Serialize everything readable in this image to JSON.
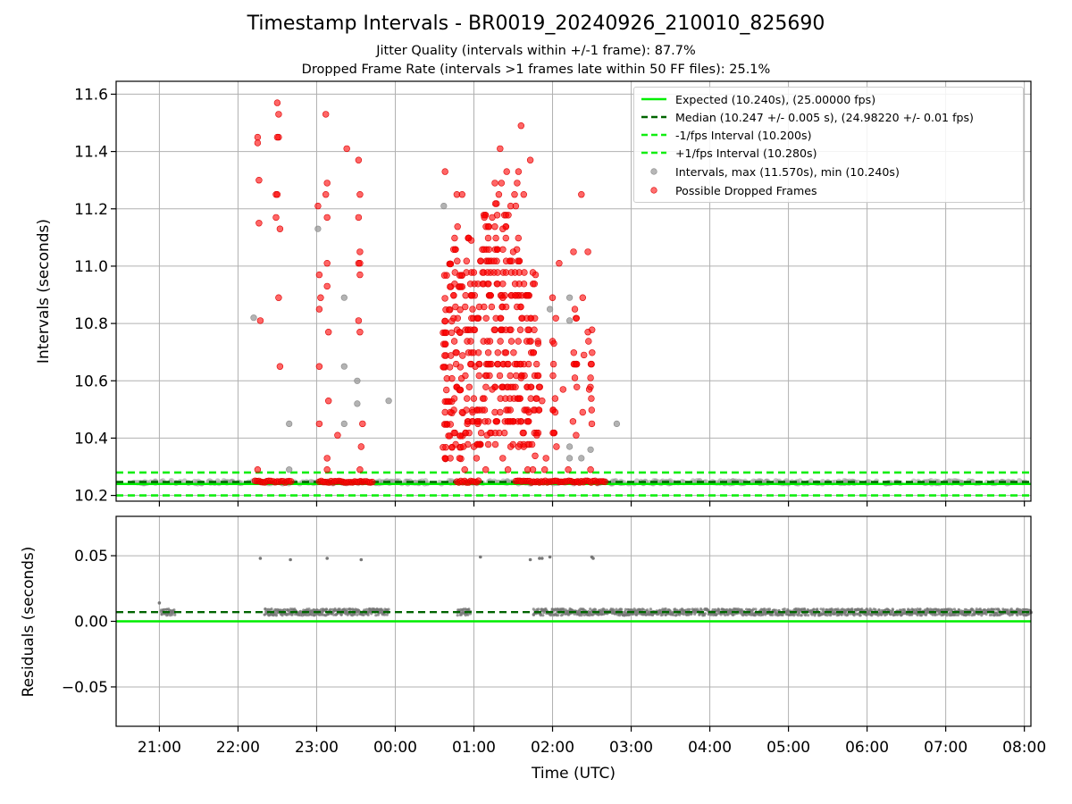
{
  "header": {
    "title": "Timestamp Intervals - BR0019_20240926_210010_825690",
    "subtitle1": "Jitter Quality (intervals within +/-1 frame): 87.7%",
    "subtitle2": "Dropped Frame Rate (intervals >1 frames late within 50 FF files): 25.1%"
  },
  "colors": {
    "expected": "#00ee00",
    "median": "#006400",
    "interval_dashed": "#11ee11",
    "intervals_gray": "#999999",
    "dropped_red": "#ff0000",
    "residual_gray": "#777777",
    "grid": "#b0b0b0"
  },
  "chart_data": [
    {
      "type": "scatter",
      "name": "intervals-panel",
      "ylabel": "Intervals (seconds)",
      "ylim": [
        10.18,
        11.645
      ],
      "xlim": [
        "20:27",
        "08:05"
      ],
      "yticks": [
        10.2,
        10.4,
        10.6,
        10.8,
        11.0,
        11.2,
        11.4,
        11.6
      ],
      "ytick_labels": [
        "10.2",
        "10.4",
        "10.6",
        "10.8",
        "11.0",
        "11.2",
        "11.4",
        "11.6"
      ],
      "grid": true,
      "legend_position": "top-right",
      "reference_lines": [
        {
          "label": "Expected (10.240s), (25.00000 fps)",
          "y": 10.24,
          "style": "solid"
        },
        {
          "label": "Median (10.247 +/- 0.005 s), (24.98220 +/- 0.01 fps)",
          "y": 10.247,
          "style": "dashed"
        },
        {
          "label": "-1/fps Interval (10.200s)",
          "y": 10.2,
          "style": "dashed"
        },
        {
          "label": "+1/fps Interval (10.280s)",
          "y": 10.28,
          "style": "dashed"
        }
      ],
      "series": [
        {
          "name": "Intervals, max (11.570s), min (10.240s)",
          "points": [
            [
              "22:12",
              10.82
            ],
            [
              "22:39",
              10.45
            ],
            [
              "22:39",
              10.29
            ],
            [
              "23:01",
              11.13
            ],
            [
              "23:21",
              10.89
            ],
            [
              "23:21",
              10.65
            ],
            [
              "23:21",
              10.45
            ],
            [
              "23:31",
              10.6
            ],
            [
              "23:31",
              10.52
            ],
            [
              "23:55",
              10.53
            ],
            [
              "00:37",
              11.21
            ],
            [
              "01:58",
              10.85
            ],
            [
              "02:13",
              10.89
            ],
            [
              "02:13",
              10.81
            ],
            [
              "02:13",
              10.37
            ],
            [
              "02:13",
              10.33
            ],
            [
              "02:22",
              10.33
            ],
            [
              "02:29",
              10.36
            ],
            [
              "02:49",
              10.45
            ]
          ]
        },
        {
          "name": "Possible Dropped Frames",
          "points": [
            [
              "22:15",
              11.45
            ],
            [
              "22:15",
              11.43
            ],
            [
              "22:16",
              11.3
            ],
            [
              "22:16",
              11.15
            ],
            [
              "22:17",
              10.81
            ],
            [
              "22:15",
              10.29
            ],
            [
              "22:30",
              11.57
            ],
            [
              "22:31",
              11.53
            ],
            [
              "22:31",
              11.45
            ],
            [
              "22:30",
              11.45
            ],
            [
              "22:29",
              11.25
            ],
            [
              "22:30",
              11.25
            ],
            [
              "22:29",
              11.17
            ],
            [
              "22:32",
              11.13
            ],
            [
              "22:31",
              10.89
            ],
            [
              "22:32",
              10.65
            ],
            [
              "23:01",
              11.21
            ],
            [
              "23:02",
              10.97
            ],
            [
              "23:03",
              10.89
            ],
            [
              "23:02",
              10.85
            ],
            [
              "23:02",
              10.65
            ],
            [
              "23:02",
              10.45
            ],
            [
              "23:07",
              11.53
            ],
            [
              "23:08",
              11.29
            ],
            [
              "23:07",
              11.25
            ],
            [
              "23:08",
              11.17
            ],
            [
              "23:08",
              11.01
            ],
            [
              "23:08",
              10.93
            ],
            [
              "23:09",
              10.77
            ],
            [
              "23:09",
              10.53
            ],
            [
              "23:08",
              10.33
            ],
            [
              "23:08",
              10.29
            ],
            [
              "23:23",
              11.41
            ],
            [
              "23:32",
              11.37
            ],
            [
              "23:33",
              11.25
            ],
            [
              "23:32",
              11.17
            ],
            [
              "23:33",
              11.05
            ],
            [
              "23:32",
              11.01
            ],
            [
              "23:33",
              11.01
            ],
            [
              "23:33",
              10.97
            ],
            [
              "23:32",
              10.81
            ],
            [
              "23:33",
              10.77
            ],
            [
              "23:35",
              10.45
            ],
            [
              "23:34",
              10.37
            ],
            [
              "23:33",
              10.29
            ],
            [
              "23:16",
              10.41
            ],
            [
              "00:38",
              11.33
            ],
            [
              "00:38",
              10.49
            ],
            [
              "00:38",
              10.33
            ],
            [
              "00:42",
              10.49
            ],
            [
              "00:42",
              10.33
            ],
            [
              "00:47",
              11.25
            ],
            [
              "00:49",
              10.77
            ],
            [
              "00:49",
              10.33
            ],
            [
              "00:51",
              11.25
            ],
            [
              "00:51",
              10.49
            ],
            [
              "00:52",
              10.37
            ],
            [
              "00:53",
              10.29
            ],
            [
              "00:55",
              10.45
            ],
            [
              "00:58",
              11.09
            ],
            [
              "00:59",
              10.85
            ],
            [
              "00:59",
              10.49
            ],
            [
              "01:00",
              10.37
            ],
            [
              "01:01",
              10.65
            ],
            [
              "01:02",
              10.33
            ],
            [
              "01:03",
              10.45
            ],
            [
              "01:08",
              11.17
            ],
            [
              "01:09",
              10.29
            ],
            [
              "01:10",
              10.41
            ],
            [
              "01:14",
              11.17
            ],
            [
              "01:14",
              10.57
            ],
            [
              "01:16",
              11.29
            ],
            [
              "01:16",
              10.49
            ],
            [
              "01:19",
              11.25
            ],
            [
              "01:20",
              11.41
            ],
            [
              "01:20",
              10.49
            ],
            [
              "01:21",
              11.29
            ],
            [
              "01:22",
              11.13
            ],
            [
              "01:22",
              10.33
            ],
            [
              "01:22",
              10.89
            ],
            [
              "01:25",
              11.33
            ],
            [
              "01:26",
              10.29
            ],
            [
              "01:28",
              11.21
            ],
            [
              "01:28",
              10.37
            ],
            [
              "01:30",
              11.05
            ],
            [
              "01:31",
              11.25
            ],
            [
              "01:32",
              11.21
            ],
            [
              "01:33",
              11.29
            ],
            [
              "01:34",
              11.33
            ],
            [
              "01:34",
              10.37
            ],
            [
              "01:36",
              11.49
            ],
            [
              "01:36",
              10.61
            ],
            [
              "01:38",
              11.25
            ],
            [
              "01:38",
              10.37
            ],
            [
              "01:41",
              10.29
            ],
            [
              "01:42",
              10.49
            ],
            [
              "01:43",
              11.37
            ],
            [
              "01:45",
              10.29
            ],
            [
              "01:47",
              10.97
            ],
            [
              "01:48",
              10.41
            ],
            [
              "01:49",
              10.73
            ],
            [
              "01:52",
              10.53
            ],
            [
              "01:54",
              10.29
            ],
            [
              "01:55",
              10.33
            ],
            [
              "02:00",
              10.89
            ],
            [
              "02:01",
              10.73
            ],
            [
              "02:02",
              10.49
            ],
            [
              "02:03",
              10.37
            ],
            [
              "02:05",
              11.01
            ],
            [
              "02:08",
              10.57
            ],
            [
              "02:12",
              10.29
            ],
            [
              "02:16",
              11.05
            ],
            [
              "02:17",
              10.85
            ],
            [
              "02:17",
              10.61
            ],
            [
              "02:18",
              10.41
            ],
            [
              "02:22",
              11.25
            ],
            [
              "02:23",
              10.89
            ],
            [
              "02:23",
              10.49
            ],
            [
              "02:24",
              10.69
            ],
            [
              "02:27",
              11.05
            ],
            [
              "02:27",
              10.77
            ],
            [
              "02:28",
              10.57
            ],
            [
              "02:29",
              10.29
            ],
            [
              "02:29",
              10.61
            ],
            [
              "02:30",
              10.45
            ]
          ],
          "columns": [
            {
              "x": "00:38",
              "y_min": 10.32,
              "y_max": 11.0,
              "n": 30
            },
            {
              "x": "00:42",
              "y_min": 10.36,
              "y_max": 11.05,
              "n": 22
            },
            {
              "x": "00:46",
              "y_min": 10.37,
              "y_max": 11.13,
              "n": 26
            },
            {
              "x": "00:50",
              "y_min": 10.32,
              "y_max": 10.97,
              "n": 22
            },
            {
              "x": "00:55",
              "y_min": 10.37,
              "y_max": 11.13,
              "n": 22
            },
            {
              "x": "00:59",
              "y_min": 10.33,
              "y_max": 11.0,
              "n": 22
            },
            {
              "x": "01:04",
              "y_min": 10.37,
              "y_max": 11.05,
              "n": 24
            },
            {
              "x": "01:08",
              "y_min": 10.41,
              "y_max": 11.17,
              "n": 24
            },
            {
              "x": "01:12",
              "y_min": 10.33,
              "y_max": 11.13,
              "n": 28
            },
            {
              "x": "01:17",
              "y_min": 10.37,
              "y_max": 11.21,
              "n": 28
            },
            {
              "x": "01:21",
              "y_min": 10.41,
              "y_max": 11.05,
              "n": 22
            },
            {
              "x": "01:25",
              "y_min": 10.33,
              "y_max": 11.17,
              "n": 24
            },
            {
              "x": "01:29",
              "y_min": 10.37,
              "y_max": 11.05,
              "n": 22
            },
            {
              "x": "01:33",
              "y_min": 10.41,
              "y_max": 11.13,
              "n": 24
            },
            {
              "x": "01:37",
              "y_min": 10.33,
              "y_max": 10.97,
              "n": 22
            },
            {
              "x": "01:41",
              "y_min": 10.37,
              "y_max": 10.89,
              "n": 20
            },
            {
              "x": "01:45",
              "y_min": 10.33,
              "y_max": 10.97,
              "n": 20
            },
            {
              "x": "01:49",
              "y_min": 10.41,
              "y_max": 10.77,
              "n": 12
            },
            {
              "x": "02:01",
              "y_min": 10.41,
              "y_max": 10.81,
              "n": 10
            },
            {
              "x": "02:17",
              "y_min": 10.45,
              "y_max": 10.81,
              "n": 10
            },
            {
              "x": "02:29",
              "y_min": 10.49,
              "y_max": 10.77,
              "n": 8
            }
          ],
          "baseline_runs": [
            {
              "x_start": "22:13",
              "x_end": "22:25",
              "y": 10.248
            },
            {
              "x_start": "22:27",
              "x_end": "22:41",
              "y": 10.248
            },
            {
              "x_start": "23:02",
              "x_end": "23:43",
              "y": 10.248
            },
            {
              "x_start": "00:47",
              "x_end": "01:04",
              "y": 10.248
            },
            {
              "x_start": "01:32",
              "x_end": "02:19",
              "y": 10.248
            },
            {
              "x_start": "02:19",
              "x_end": "02:40",
              "y": 10.248
            }
          ]
        }
      ]
    },
    {
      "type": "scatter",
      "name": "residuals-panel",
      "ylabel": "Residuals (seconds)",
      "xlabel": "Time (UTC)",
      "ylim": [
        -0.08,
        0.08
      ],
      "xlim": [
        "20:27",
        "08:05"
      ],
      "yticks": [
        -0.05,
        0.0,
        0.05
      ],
      "ytick_labels": [
        "−0.05",
        "0.00",
        "0.05"
      ],
      "xticks": [
        "21:00",
        "22:00",
        "23:00",
        "00:00",
        "01:00",
        "02:00",
        "03:00",
        "04:00",
        "05:00",
        "06:00",
        "07:00",
        "08:00"
      ],
      "grid": true,
      "reference_lines": [
        {
          "y": 0.0,
          "style": "solid"
        },
        {
          "y": 0.007,
          "style": "dashed"
        }
      ],
      "series": [
        {
          "name": "residuals",
          "band": {
            "y_center": 0.007,
            "spread": 0.0025
          },
          "segments": [
            {
              "x_start": "21:01",
              "x_end": "21:12"
            },
            {
              "x_start": "22:20",
              "x_end": "23:55"
            },
            {
              "x_start": "00:47",
              "x_end": "00:57"
            },
            {
              "x_start": "01:45",
              "x_end": "08:05"
            }
          ],
          "outliers": [
            [
              "21:00",
              0.014
            ],
            [
              "22:17",
              0.048
            ],
            [
              "22:40",
              0.047
            ],
            [
              "23:08",
              0.048
            ],
            [
              "23:34",
              0.047
            ],
            [
              "01:05",
              0.049
            ],
            [
              "01:43",
              0.047
            ],
            [
              "01:50",
              0.048
            ],
            [
              "01:52",
              0.048
            ],
            [
              "01:58",
              0.049
            ],
            [
              "02:30",
              0.049
            ],
            [
              "02:31",
              0.048
            ]
          ]
        }
      ]
    }
  ]
}
